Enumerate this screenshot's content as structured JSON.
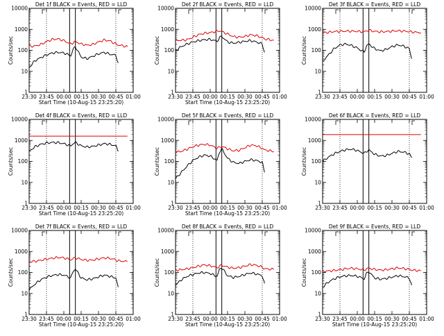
{
  "colors": {
    "events": "#000000",
    "lld": "#dd0000",
    "background": "#ffffff",
    "axes": "#000000"
  },
  "chart_data": [
    {
      "type": "line",
      "title": "Det 1f BLACK = Events, RED = LLD",
      "xlabel": "Start Time (10-Aug-15 23:25:20)",
      "ylabel": "Counts/sec",
      "yscale": "log",
      "ylim": [
        1,
        10000
      ],
      "xlim": [
        "23:30",
        "01:00"
      ],
      "x_tick_labels": [
        "23:30",
        "23:45",
        "00:00",
        "00:15",
        "00:30",
        "00:45",
        "01:00"
      ],
      "y_tick_labels": [
        "1",
        "10",
        "100",
        "1000",
        "10000"
      ],
      "markers": {
        "dotted_lines": [
          "23:45",
          "00:45"
        ],
        "solid_lines": [
          "00:05",
          "00:10"
        ]
      },
      "series": [
        {
          "name": "BLACK = Events",
          "x_minutes": [
            0,
            5,
            10,
            15,
            20,
            25,
            30,
            33,
            36,
            38,
            40,
            45,
            50,
            55,
            60,
            65,
            70,
            75,
            77
          ],
          "values": [
            15,
            32,
            45,
            60,
            75,
            80,
            75,
            65,
            55,
            110,
            150,
            48,
            40,
            52,
            68,
            80,
            65,
            58,
            25
          ]
        },
        {
          "name": "RED = LLD",
          "x_minutes": [
            0,
            5,
            10,
            15,
            20,
            25,
            30,
            33,
            36,
            38,
            40,
            45,
            50,
            55,
            60,
            65,
            70,
            75,
            77,
            85
          ],
          "values": [
            155,
            160,
            190,
            260,
            330,
            350,
            290,
            240,
            200,
            230,
            260,
            200,
            175,
            190,
            250,
            310,
            280,
            200,
            180,
            150
          ]
        }
      ]
    },
    {
      "type": "line",
      "title": "Det 2f BLACK = Events, RED = LLD",
      "xlabel": "Start Time (10-Aug-15 23:25:20)",
      "ylabel": "Counts/sec",
      "yscale": "log",
      "ylim": [
        1,
        10000
      ],
      "xlim": [
        "23:30",
        "01:00"
      ],
      "x_tick_labels": [
        "23:30",
        "23:45",
        "00:00",
        "00:15",
        "00:30",
        "00:45",
        "01:00"
      ],
      "y_tick_labels": [
        "1",
        "10",
        "100",
        "1000",
        "10000"
      ],
      "markers": {
        "dotted_lines": [
          "23:45",
          "00:45"
        ],
        "solid_lines": [
          "00:05",
          "00:10"
        ]
      },
      "series": [
        {
          "name": "BLACK = Events",
          "x_minutes": [
            0,
            5,
            10,
            15,
            20,
            25,
            30,
            33,
            36,
            38,
            40,
            45,
            50,
            55,
            60,
            65,
            70,
            75,
            77
          ],
          "values": [
            100,
            150,
            200,
            250,
            290,
            320,
            330,
            300,
            270,
            400,
            460,
            250,
            220,
            240,
            270,
            290,
            250,
            200,
            80
          ]
        },
        {
          "name": "RED = LLD",
          "x_minutes": [
            0,
            5,
            10,
            15,
            20,
            25,
            30,
            33,
            36,
            38,
            40,
            45,
            50,
            55,
            60,
            65,
            70,
            75,
            77,
            85
          ],
          "values": [
            300,
            300,
            320,
            420,
            560,
            650,
            700,
            750,
            800,
            850,
            780,
            600,
            450,
            420,
            460,
            550,
            500,
            400,
            350,
            300
          ]
        }
      ]
    },
    {
      "type": "line",
      "title": "Det 3f BLACK = Events, RED = LLD",
      "xlabel": "",
      "ylabel": "Counts/sec",
      "yscale": "log",
      "ylim": [
        1,
        10000
      ],
      "xlim": [
        "23:30",
        "01:00"
      ],
      "x_tick_labels": [
        "23:30",
        "23:45",
        "00:00",
        "00:15",
        "00:30",
        "00:45",
        "01:00"
      ],
      "y_tick_labels": [
        "1",
        "10",
        "100",
        "1000",
        "10000"
      ],
      "markers": {
        "dotted_lines": [
          "23:45",
          "00:45"
        ],
        "solid_lines": [
          "00:05",
          "00:10"
        ]
      },
      "series": [
        {
          "name": "BLACK = Events",
          "x_minutes": [
            0,
            5,
            10,
            15,
            20,
            25,
            30,
            33,
            36,
            38,
            40,
            45,
            50,
            55,
            60,
            65,
            70,
            75,
            77
          ],
          "values": [
            30,
            60,
            120,
            180,
            200,
            170,
            130,
            100,
            85,
            160,
            200,
            120,
            95,
            110,
            150,
            180,
            160,
            120,
            40
          ]
        },
        {
          "name": "RED = LLD",
          "x_minutes": [
            0,
            5,
            10,
            15,
            20,
            25,
            30,
            33,
            36,
            38,
            40,
            45,
            50,
            55,
            60,
            65,
            70,
            75,
            77,
            85
          ],
          "values": [
            700,
            720,
            780,
            800,
            820,
            820,
            800,
            780,
            760,
            850,
            900,
            800,
            760,
            780,
            820,
            850,
            830,
            780,
            750,
            700
          ]
        }
      ]
    },
    {
      "type": "line",
      "title": "Det 4f BLACK = Events, RED = LLD",
      "xlabel": "Start Time (10-Aug-15 23:25:20)",
      "ylabel": "Counts/sec",
      "yscale": "log",
      "ylim": [
        1,
        10000
      ],
      "xlim": [
        "23:30",
        "01:00"
      ],
      "x_tick_labels": [
        "23:30",
        "23:45",
        "00:00",
        "00:15",
        "00:30",
        "00:45",
        "01:00"
      ],
      "y_tick_labels": [
        "1",
        "10",
        "100",
        "1000",
        "10000"
      ],
      "markers": {
        "dotted_lines": [
          "23:45",
          "00:45"
        ],
        "solid_lines": [
          "00:05",
          "00:10"
        ]
      },
      "series": [
        {
          "name": "BLACK = Events",
          "x_minutes": [
            0,
            5,
            10,
            15,
            20,
            25,
            30,
            33,
            36,
            38,
            40,
            45,
            50,
            55,
            60,
            65,
            70,
            75,
            77
          ],
          "values": [
            300,
            500,
            650,
            750,
            800,
            780,
            700,
            620,
            550,
            700,
            800,
            550,
            480,
            520,
            600,
            700,
            650,
            550,
            300
          ]
        },
        {
          "name": "RED = LLD",
          "x_minutes": [
            0,
            85
          ],
          "values": [
            1600,
            1600
          ]
        }
      ]
    },
    {
      "type": "line",
      "title": "Det 5f BLACK = Events, RED = LLD",
      "xlabel": "Start Time (10-Aug-15 23:25:20)",
      "ylabel": "Counts/sec",
      "yscale": "log",
      "ylim": [
        1,
        10000
      ],
      "xlim": [
        "23:30",
        "01:00"
      ],
      "x_tick_labels": [
        "23:30",
        "23:45",
        "00:00",
        "00:15",
        "00:30",
        "00:45",
        "01:00"
      ],
      "y_tick_labels": [
        "1",
        "10",
        "100",
        "1000",
        "10000"
      ],
      "markers": {
        "dotted_lines": [
          "23:45",
          "00:45"
        ],
        "solid_lines": [
          "00:05",
          "00:10"
        ]
      },
      "series": [
        {
          "name": "BLACK = Events",
          "x_minutes": [
            0,
            5,
            10,
            15,
            20,
            25,
            30,
            33,
            36,
            38,
            40,
            45,
            50,
            55,
            60,
            65,
            70,
            75,
            77
          ],
          "values": [
            15,
            30,
            60,
            110,
            160,
            200,
            180,
            140,
            110,
            280,
            400,
            140,
            90,
            80,
            100,
            120,
            110,
            90,
            30
          ]
        },
        {
          "name": "RED = LLD",
          "x_minutes": [
            0,
            5,
            10,
            15,
            20,
            25,
            30,
            33,
            36,
            38,
            40,
            45,
            50,
            55,
            60,
            65,
            70,
            75,
            77,
            85
          ],
          "values": [
            280,
            300,
            380,
            500,
            600,
            650,
            600,
            500,
            420,
            480,
            520,
            400,
            320,
            340,
            450,
            600,
            560,
            420,
            350,
            300
          ]
        }
      ]
    },
    {
      "type": "line",
      "title": "Det 6f BLACK = Events, RED = LLD",
      "xlabel": "",
      "ylabel": "Counts/sec",
      "yscale": "log",
      "ylim": [
        1,
        10000
      ],
      "xlim": [
        "23:30",
        "01:00"
      ],
      "x_tick_labels": [
        "23:30",
        "23:45",
        "00:00",
        "00:15",
        "00:30",
        "00:45",
        "01:00"
      ],
      "y_tick_labels": [
        "1",
        "10",
        "100",
        "1000",
        "10000"
      ],
      "markers": {
        "dotted_lines": [
          "23:45",
          "00:45"
        ],
        "solid_lines": [
          "00:05",
          "00:10"
        ]
      },
      "series": [
        {
          "name": "BLACK = Events",
          "x_minutes": [
            0,
            5,
            10,
            15,
            20,
            25,
            30,
            33,
            36,
            38,
            40,
            45,
            50,
            55,
            60,
            65,
            70,
            75,
            77
          ],
          "values": [
            100,
            160,
            230,
            300,
            360,
            380,
            330,
            280,
            240,
            300,
            350,
            220,
            180,
            190,
            240,
            300,
            280,
            230,
            150
          ]
        },
        {
          "name": "RED = LLD",
          "x_minutes": [
            0,
            85
          ],
          "values": [
            1900,
            1900
          ]
        }
      ]
    },
    {
      "type": "line",
      "title": "Det 7f BLACK = Events, RED = LLD",
      "xlabel": "Start Time (10-Aug-15 23:25:20)",
      "ylabel": "Counts/sec",
      "yscale": "log",
      "ylim": [
        1,
        10000
      ],
      "xlim": [
        "23:30",
        "01:00"
      ],
      "x_tick_labels": [
        "23:30",
        "23:45",
        "00:00",
        "00:15",
        "00:30",
        "00:45",
        "01:00"
      ],
      "y_tick_labels": [
        "1",
        "10",
        "100",
        "1000",
        "10000"
      ],
      "markers": {
        "dotted_lines": [
          "23:45",
          "00:45"
        ],
        "solid_lines": [
          "00:05",
          "00:10"
        ]
      },
      "series": [
        {
          "name": "BLACK = Events",
          "x_minutes": [
            0,
            5,
            10,
            15,
            20,
            25,
            30,
            33,
            36,
            38,
            40,
            45,
            50,
            55,
            60,
            65,
            70,
            75,
            77
          ],
          "values": [
            15,
            28,
            45,
            60,
            72,
            80,
            75,
            65,
            55,
            110,
            150,
            55,
            45,
            50,
            62,
            75,
            65,
            55,
            20
          ]
        },
        {
          "name": "RED = LLD",
          "x_minutes": [
            0,
            5,
            10,
            15,
            20,
            25,
            30,
            33,
            36,
            38,
            40,
            45,
            50,
            55,
            60,
            65,
            70,
            75,
            77,
            85
          ],
          "values": [
            330,
            340,
            380,
            430,
            480,
            520,
            500,
            450,
            400,
            460,
            500,
            420,
            380,
            390,
            440,
            500,
            470,
            400,
            360,
            330
          ]
        }
      ]
    },
    {
      "type": "line",
      "title": "Det 8f BLACK = Events, RED = LLD",
      "xlabel": "Start Time (10-Aug-15 23:25:20)",
      "ylabel": "Counts/sec",
      "yscale": "log",
      "ylim": [
        1,
        10000
      ],
      "xlim": [
        "23:30",
        "01:00"
      ],
      "x_tick_labels": [
        "23:30",
        "23:45",
        "00:00",
        "00:15",
        "00:30",
        "00:45",
        "01:00"
      ],
      "y_tick_labels": [
        "1",
        "10",
        "100",
        "1000",
        "10000"
      ],
      "markers": {
        "dotted_lines": [
          "23:45",
          "00:45"
        ],
        "solid_lines": [
          "00:05",
          "00:10"
        ]
      },
      "series": [
        {
          "name": "BLACK = Events",
          "x_minutes": [
            0,
            5,
            10,
            15,
            20,
            25,
            30,
            33,
            36,
            38,
            40,
            45,
            50,
            55,
            60,
            65,
            70,
            75,
            77
          ],
          "values": [
            25,
            45,
            65,
            80,
            95,
            100,
            90,
            75,
            65,
            140,
            170,
            70,
            58,
            65,
            80,
            95,
            85,
            70,
            30
          ]
        },
        {
          "name": "RED = LLD",
          "x_minutes": [
            0,
            5,
            10,
            15,
            20,
            25,
            30,
            33,
            36,
            38,
            40,
            45,
            50,
            55,
            60,
            65,
            70,
            75,
            77,
            85
          ],
          "values": [
            130,
            135,
            150,
            170,
            200,
            230,
            210,
            190,
            170,
            200,
            220,
            180,
            160,
            170,
            200,
            240,
            220,
            180,
            150,
            140
          ]
        }
      ]
    },
    {
      "type": "line",
      "title": "Det 9f BLACK = Events, RED = LLD",
      "xlabel": "Start Time (10-Aug-15 23:25:20)",
      "ylabel": "Counts/sec",
      "yscale": "log",
      "ylim": [
        1,
        10000
      ],
      "xlim": [
        "23:30",
        "01:00"
      ],
      "x_tick_labels": [
        "23:30",
        "23:45",
        "00:00",
        "00:15",
        "00:30",
        "00:45",
        "01:00"
      ],
      "y_tick_labels": [
        "1",
        "10",
        "100",
        "1000",
        "10000"
      ],
      "markers": {
        "dotted_lines": [
          "23:45",
          "00:45"
        ],
        "solid_lines": [
          "00:05",
          "00:10"
        ]
      },
      "series": [
        {
          "name": "BLACK = Events",
          "x_minutes": [
            0,
            5,
            10,
            15,
            20,
            25,
            30,
            33,
            36,
            38,
            40,
            45,
            50,
            55,
            60,
            65,
            70,
            75,
            77
          ],
          "values": [
            20,
            35,
            50,
            62,
            70,
            72,
            66,
            58,
            50,
            90,
            110,
            55,
            48,
            52,
            60,
            70,
            64,
            55,
            25
          ]
        },
        {
          "name": "RED = LLD",
          "x_minutes": [
            0,
            5,
            10,
            15,
            20,
            25,
            30,
            33,
            36,
            38,
            40,
            45,
            50,
            55,
            60,
            65,
            70,
            75,
            77,
            85
          ],
          "values": [
            115,
            118,
            125,
            135,
            150,
            160,
            150,
            140,
            130,
            150,
            160,
            140,
            130,
            135,
            150,
            165,
            155,
            140,
            130,
            120
          ]
        }
      ]
    }
  ]
}
